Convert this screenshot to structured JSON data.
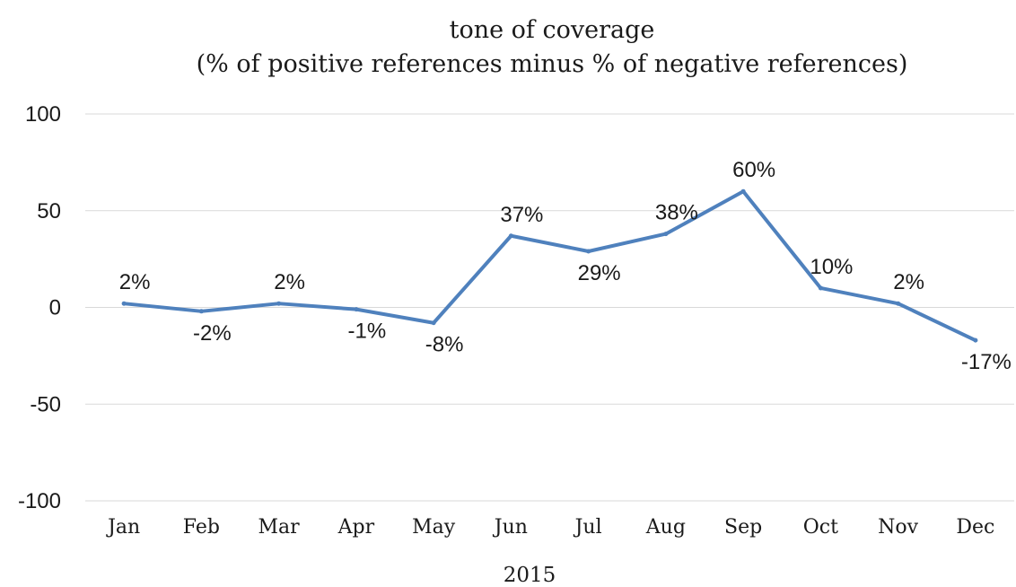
{
  "chart_data": {
    "type": "line",
    "title": "tone of coverage",
    "subtitle": "(% of positive references minus % of negative references)",
    "xlabel": "2015",
    "ylabel": "",
    "categories": [
      "Jan",
      "Feb",
      "Mar",
      "Apr",
      "May",
      "Jun",
      "Jul",
      "Aug",
      "Sep",
      "Oct",
      "Nov",
      "Dec"
    ],
    "series": [
      {
        "values": [
          2,
          -2,
          2,
          -1,
          -8,
          37,
          29,
          38,
          60,
          10,
          2,
          -17
        ],
        "labels": [
          "2%",
          "-2%",
          "2%",
          "-1%",
          "-8%",
          "37%",
          "29%",
          "38%",
          "60%",
          "10%",
          "2%",
          "-17%"
        ],
        "color": "#4f81bd"
      }
    ],
    "ylim": [
      -100,
      100
    ],
    "yticks": [
      "100",
      "50",
      "0",
      "-50",
      "-100"
    ],
    "grid": true,
    "legend": "none"
  }
}
